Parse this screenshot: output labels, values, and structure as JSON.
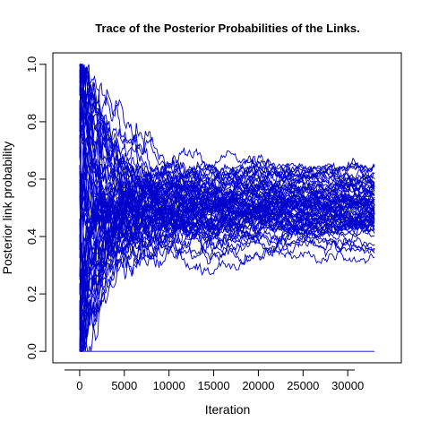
{
  "chart_data": {
    "type": "line",
    "title": "Trace of the Posterior Probabilities of the Links.",
    "xlabel": "Iteration",
    "ylabel": "Posterior link probability",
    "xlim": [
      -3000,
      36000
    ],
    "ylim": [
      -0.04,
      1.04
    ],
    "x_range": [
      0,
      33000
    ],
    "xticks": [
      0,
      5000,
      10000,
      15000,
      20000,
      25000,
      30000
    ],
    "yticks": [
      0.0,
      0.2,
      0.4,
      0.6,
      0.8,
      1.0
    ],
    "xtick_labels": [
      "0",
      "5000",
      "10000",
      "15000",
      "20000",
      "25000",
      "30000"
    ],
    "ytick_labels": [
      "0.0",
      "0.2",
      "0.4",
      "0.6",
      "0.8",
      "1.0"
    ],
    "grid": false,
    "legend": "none",
    "line_color": "#0000cd",
    "n_series": 72,
    "flat_series_value": 0.0,
    "final_values_range": [
      0.3,
      0.63
    ],
    "typical_final_value": 0.5
  }
}
